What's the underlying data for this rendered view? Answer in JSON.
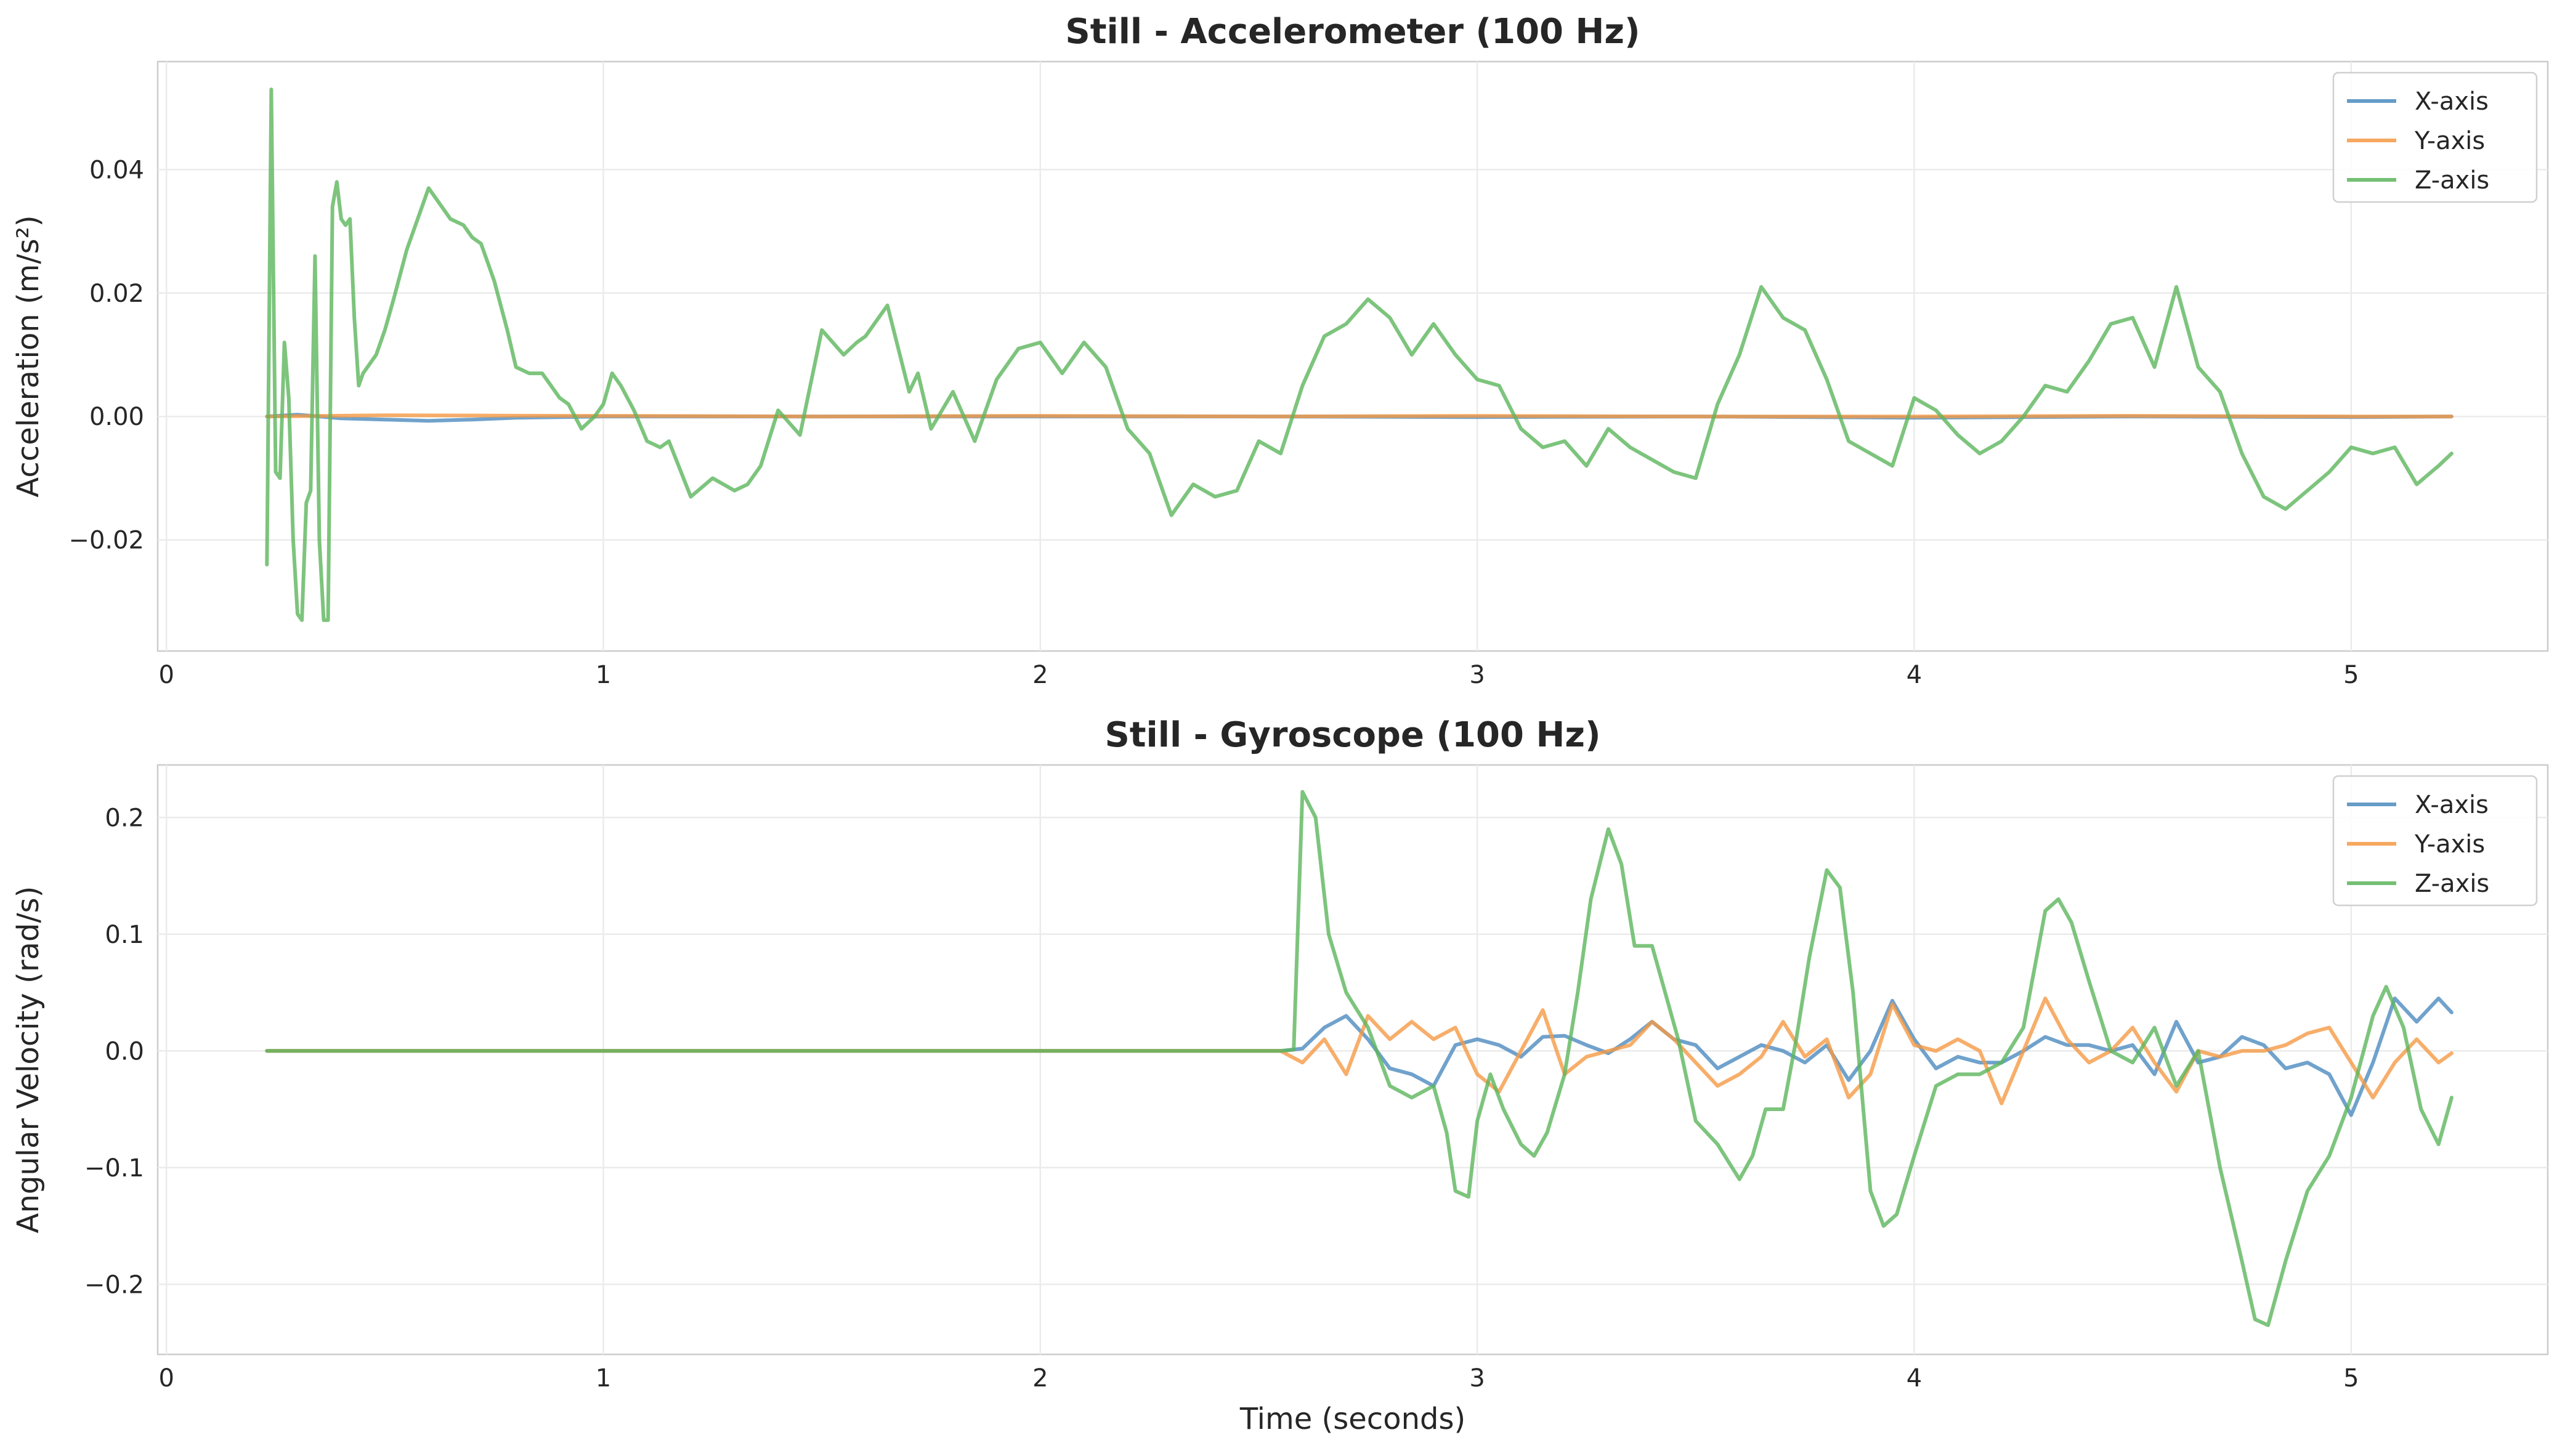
{
  "chart_data": [
    {
      "type": "line",
      "title": "Still - Accelerometer (100 Hz)",
      "xlabel": "",
      "ylabel": "Acceleration (m/s²)",
      "xlim": [
        -0.02,
        5.45
      ],
      "ylim": [
        -0.038,
        0.0575
      ],
      "xticks": [
        0,
        1,
        2,
        3,
        4,
        5
      ],
      "yticks": [
        -0.02,
        0.0,
        0.02,
        0.04
      ],
      "ytick_labels": [
        "−0.02",
        "0.00",
        "0.02",
        "0.04"
      ],
      "grid": true,
      "legend_position": "top-right",
      "series": [
        {
          "name": "X-axis",
          "color": "#4c8bbf",
          "x": [
            0.23,
            0.3,
            0.4,
            0.5,
            0.6,
            0.7,
            0.8,
            1.0,
            1.5,
            2.0,
            2.5,
            3.0,
            3.5,
            4.0,
            4.5,
            5.0,
            5.23
          ],
          "y": [
            0.0,
            0.0003,
            -0.0003,
            -0.0005,
            -0.0007,
            -0.0005,
            -0.0002,
            0.0,
            0.0,
            0.0,
            0.0,
            -0.0001,
            0.0,
            -0.0002,
            0.0,
            -0.0001,
            0.0
          ]
        },
        {
          "name": "Y-axis",
          "color": "#f59a45",
          "x": [
            0.23,
            0.5,
            1.0,
            1.5,
            2.0,
            2.5,
            3.0,
            3.5,
            4.0,
            4.5,
            5.0,
            5.23
          ],
          "y": [
            0.0,
            0.0002,
            0.0001,
            0.0,
            0.0001,
            0.0,
            0.0001,
            0.0,
            0.0,
            0.0001,
            0.0,
            0.0
          ]
        },
        {
          "name": "Z-axis",
          "color": "#5cb55c",
          "x": [
            0.23,
            0.24,
            0.25,
            0.26,
            0.27,
            0.28,
            0.29,
            0.3,
            0.31,
            0.32,
            0.33,
            0.34,
            0.35,
            0.36,
            0.37,
            0.38,
            0.39,
            0.4,
            0.41,
            0.42,
            0.43,
            0.44,
            0.45,
            0.48,
            0.5,
            0.52,
            0.55,
            0.58,
            0.6,
            0.63,
            0.65,
            0.68,
            0.7,
            0.72,
            0.75,
            0.78,
            0.8,
            0.83,
            0.86,
            0.9,
            0.92,
            0.95,
            0.98,
            1.0,
            1.02,
            1.04,
            1.07,
            1.1,
            1.13,
            1.15,
            1.2,
            1.25,
            1.3,
            1.33,
            1.36,
            1.4,
            1.45,
            1.5,
            1.55,
            1.58,
            1.6,
            1.65,
            1.7,
            1.72,
            1.75,
            1.8,
            1.85,
            1.9,
            1.95,
            2.0,
            2.05,
            2.1,
            2.15,
            2.2,
            2.25,
            2.3,
            2.35,
            2.4,
            2.45,
            2.5,
            2.55,
            2.6,
            2.65,
            2.7,
            2.75,
            2.8,
            2.85,
            2.9,
            2.95,
            3.0,
            3.05,
            3.1,
            3.15,
            3.2,
            3.25,
            3.3,
            3.35,
            3.4,
            3.45,
            3.5,
            3.55,
            3.6,
            3.65,
            3.7,
            3.75,
            3.8,
            3.85,
            3.9,
            3.95,
            4.0,
            4.05,
            4.1,
            4.15,
            4.2,
            4.25,
            4.3,
            4.35,
            4.4,
            4.45,
            4.5,
            4.55,
            4.6,
            4.65,
            4.7,
            4.75,
            4.8,
            4.85,
            4.9,
            4.95,
            5.0,
            5.05,
            5.1,
            5.15,
            5.2,
            5.23
          ],
          "y": [
            -0.024,
            0.053,
            -0.009,
            -0.01,
            0.012,
            0.003,
            -0.02,
            -0.032,
            -0.033,
            -0.014,
            -0.012,
            0.026,
            -0.02,
            -0.033,
            -0.033,
            0.034,
            0.038,
            0.032,
            0.031,
            0.032,
            0.016,
            0.005,
            0.007,
            0.01,
            0.014,
            0.019,
            0.027,
            0.033,
            0.037,
            0.034,
            0.032,
            0.031,
            0.029,
            0.028,
            0.022,
            0.014,
            0.008,
            0.007,
            0.007,
            0.003,
            0.002,
            -0.002,
            0.0,
            0.002,
            0.007,
            0.005,
            0.001,
            -0.004,
            -0.005,
            -0.004,
            -0.013,
            -0.01,
            -0.012,
            -0.011,
            -0.008,
            0.001,
            -0.003,
            0.014,
            0.01,
            0.012,
            0.013,
            0.018,
            0.004,
            0.007,
            -0.002,
            0.004,
            -0.004,
            0.006,
            0.011,
            0.012,
            0.007,
            0.012,
            0.008,
            -0.002,
            -0.006,
            -0.016,
            -0.011,
            -0.013,
            -0.012,
            -0.004,
            -0.006,
            0.005,
            0.013,
            0.015,
            0.019,
            0.016,
            0.01,
            0.015,
            0.01,
            0.006,
            0.005,
            -0.002,
            -0.005,
            -0.004,
            -0.008,
            -0.002,
            -0.005,
            -0.007,
            -0.009,
            -0.01,
            0.002,
            0.01,
            0.021,
            0.016,
            0.014,
            0.006,
            -0.004,
            -0.006,
            -0.008,
            0.003,
            0.001,
            -0.003,
            -0.006,
            -0.004,
            0.0,
            0.005,
            0.004,
            0.009,
            0.015,
            0.016,
            0.008,
            0.021,
            0.008,
            0.004,
            -0.006,
            -0.013,
            -0.015,
            -0.012,
            -0.009,
            -0.005,
            -0.006,
            -0.005,
            -0.011,
            -0.008,
            -0.006
          ]
        }
      ]
    },
    {
      "type": "line",
      "title": "Still - Gyroscope (100 Hz)",
      "xlabel": "Time (seconds)",
      "ylabel": "Angular Velocity (rad/s)",
      "xlim": [
        -0.02,
        5.45
      ],
      "ylim": [
        -0.26,
        0.245
      ],
      "xticks": [
        0,
        1,
        2,
        3,
        4,
        5
      ],
      "yticks": [
        -0.2,
        -0.1,
        0.0,
        0.1,
        0.2
      ],
      "ytick_labels": [
        "−0.2",
        "−0.1",
        "0.0",
        "0.1",
        "0.2"
      ],
      "grid": true,
      "legend_position": "top-right",
      "series": [
        {
          "name": "X-axis",
          "color": "#4c8bbf",
          "x": [
            0.23,
            1.0,
            2.0,
            2.55,
            2.6,
            2.65,
            2.7,
            2.75,
            2.8,
            2.85,
            2.9,
            2.95,
            3.0,
            3.05,
            3.1,
            3.15,
            3.2,
            3.25,
            3.3,
            3.35,
            3.4,
            3.45,
            3.5,
            3.55,
            3.6,
            3.65,
            3.7,
            3.75,
            3.8,
            3.85,
            3.9,
            3.95,
            4.0,
            4.05,
            4.1,
            4.15,
            4.2,
            4.25,
            4.3,
            4.35,
            4.4,
            4.45,
            4.5,
            4.55,
            4.6,
            4.65,
            4.7,
            4.75,
            4.8,
            4.85,
            4.9,
            4.95,
            5.0,
            5.05,
            5.1,
            5.15,
            5.2,
            5.23
          ],
          "y": [
            0.0,
            0.0,
            0.0,
            0.0,
            0.002,
            0.02,
            0.03,
            0.01,
            -0.015,
            -0.02,
            -0.03,
            0.005,
            0.01,
            0.005,
            -0.005,
            0.012,
            0.013,
            0.005,
            -0.002,
            0.01,
            0.025,
            0.01,
            0.005,
            -0.015,
            -0.005,
            0.005,
            0.0,
            -0.01,
            0.005,
            -0.025,
            0.0,
            0.043,
            0.01,
            -0.015,
            -0.005,
            -0.01,
            -0.01,
            0.0,
            0.012,
            0.005,
            0.005,
            0.0,
            0.005,
            -0.02,
            0.025,
            -0.01,
            -0.005,
            0.012,
            0.005,
            -0.015,
            -0.01,
            -0.02,
            -0.055,
            -0.01,
            0.045,
            0.025,
            0.045,
            0.033
          ]
        },
        {
          "name": "Y-axis",
          "color": "#f59a45",
          "x": [
            0.23,
            1.0,
            2.0,
            2.55,
            2.6,
            2.65,
            2.7,
            2.75,
            2.8,
            2.85,
            2.9,
            2.95,
            3.0,
            3.05,
            3.1,
            3.15,
            3.2,
            3.25,
            3.3,
            3.35,
            3.4,
            3.45,
            3.5,
            3.55,
            3.6,
            3.65,
            3.7,
            3.75,
            3.8,
            3.85,
            3.9,
            3.95,
            4.0,
            4.05,
            4.1,
            4.15,
            4.2,
            4.25,
            4.3,
            4.35,
            4.4,
            4.45,
            4.5,
            4.55,
            4.6,
            4.65,
            4.7,
            4.75,
            4.8,
            4.85,
            4.9,
            4.95,
            5.0,
            5.05,
            5.1,
            5.15,
            5.2,
            5.23
          ],
          "y": [
            0.0,
            0.0,
            0.0,
            0.0,
            -0.01,
            0.01,
            -0.02,
            0.03,
            0.01,
            0.025,
            0.01,
            0.02,
            -0.02,
            -0.035,
            0.0,
            0.035,
            -0.02,
            -0.005,
            0.0,
            0.005,
            0.025,
            0.01,
            -0.01,
            -0.03,
            -0.02,
            -0.005,
            0.025,
            -0.005,
            0.01,
            -0.04,
            -0.02,
            0.04,
            0.005,
            0.0,
            0.01,
            0.0,
            -0.045,
            0.0,
            0.045,
            0.01,
            -0.01,
            0.0,
            0.02,
            -0.01,
            -0.035,
            0.0,
            -0.005,
            0.0,
            0.0,
            0.005,
            0.015,
            0.02,
            -0.01,
            -0.04,
            -0.01,
            0.01,
            -0.01,
            -0.002
          ]
        },
        {
          "name": "Z-axis",
          "color": "#5cb55c",
          "x": [
            0.23,
            1.0,
            2.0,
            2.55,
            2.58,
            2.6,
            2.63,
            2.66,
            2.7,
            2.75,
            2.8,
            2.85,
            2.9,
            2.93,
            2.95,
            2.98,
            3.0,
            3.03,
            3.06,
            3.1,
            3.13,
            3.16,
            3.2,
            3.23,
            3.26,
            3.3,
            3.33,
            3.36,
            3.4,
            3.43,
            3.46,
            3.5,
            3.55,
            3.6,
            3.63,
            3.66,
            3.7,
            3.73,
            3.76,
            3.8,
            3.83,
            3.86,
            3.9,
            3.93,
            3.96,
            4.0,
            4.05,
            4.1,
            4.15,
            4.2,
            4.25,
            4.3,
            4.33,
            4.36,
            4.4,
            4.45,
            4.5,
            4.55,
            4.6,
            4.65,
            4.7,
            4.75,
            4.78,
            4.81,
            4.85,
            4.9,
            4.95,
            5.0,
            5.05,
            5.08,
            5.12,
            5.16,
            5.2,
            5.23
          ],
          "y": [
            0.0,
            0.0,
            0.0,
            0.0,
            0.001,
            0.222,
            0.2,
            0.1,
            0.05,
            0.02,
            -0.03,
            -0.04,
            -0.03,
            -0.07,
            -0.12,
            -0.125,
            -0.06,
            -0.02,
            -0.05,
            -0.08,
            -0.09,
            -0.07,
            -0.02,
            0.05,
            0.13,
            0.19,
            0.16,
            0.09,
            0.09,
            0.05,
            0.01,
            -0.06,
            -0.08,
            -0.11,
            -0.09,
            -0.05,
            -0.05,
            0.01,
            0.08,
            0.155,
            0.14,
            0.05,
            -0.12,
            -0.15,
            -0.14,
            -0.09,
            -0.03,
            -0.02,
            -0.02,
            -0.01,
            0.02,
            0.12,
            0.13,
            0.11,
            0.06,
            0.0,
            -0.01,
            0.02,
            -0.03,
            0.0,
            -0.1,
            -0.18,
            -0.23,
            -0.235,
            -0.18,
            -0.12,
            -0.09,
            -0.04,
            0.03,
            0.055,
            0.02,
            -0.05,
            -0.08,
            -0.04
          ]
        }
      ]
    }
  ]
}
